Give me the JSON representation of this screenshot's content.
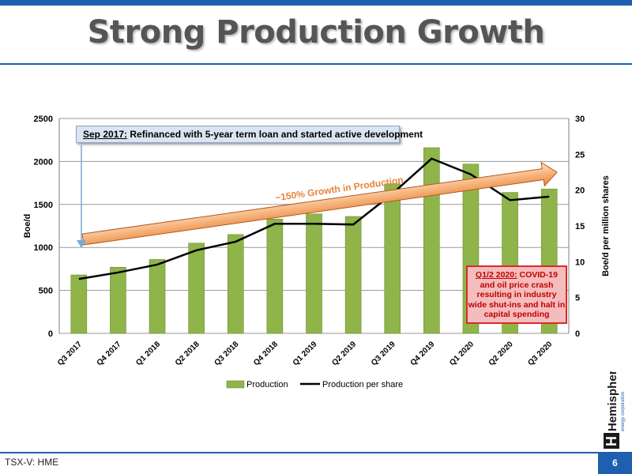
{
  "slide": {
    "title": "Strong Production Growth",
    "footer": "TSX-V: HME",
    "page_number": "6"
  },
  "logo": {
    "name": "Hemisphere",
    "subtitle": "energy corporation"
  },
  "annotations": {
    "box1_prefix": "Sep 2017:",
    "box1_text": " Refinanced with 5-year term loan and started active development",
    "growth_arrow": "~150% Growth in Production",
    "box2_prefix": "Q1/2 2020:",
    "box2_text": " COVID-19 and oil price crash resulting in industry wide shut-ins and halt in capital spending"
  },
  "colors": {
    "bar": "#8fb44a",
    "line": "#000000",
    "accent": "#1f5fb0",
    "arrow": "#f4a460"
  },
  "chart_data": {
    "type": "bar",
    "categories": [
      "Q3 2017",
      "Q4 2017",
      "Q1 2018",
      "Q2 2018",
      "Q3 2018",
      "Q4 2018",
      "Q1 2019",
      "Q2 2019",
      "Q3 2019",
      "Q4 2019",
      "Q1 2020",
      "Q2 2020",
      "Q3 2020"
    ],
    "series": [
      {
        "name": "Production",
        "type": "bar",
        "axis": "left",
        "values": [
          680,
          770,
          860,
          1050,
          1150,
          1330,
          1390,
          1360,
          1740,
          2160,
          1970,
          1640,
          1680
        ]
      },
      {
        "name": "Production per share",
        "type": "line",
        "axis": "right",
        "values": [
          7.6,
          8.5,
          9.6,
          11.6,
          12.8,
          15.3,
          15.3,
          15.2,
          19.5,
          24.4,
          22.2,
          18.6,
          19.1
        ]
      }
    ],
    "ylabel": "Boe/d",
    "y2label": "Boe/d per million shares",
    "ylim": [
      0,
      2500
    ],
    "y2lim": [
      0,
      30
    ],
    "yticks": [
      "0",
      "500",
      "1000",
      "1500",
      "2000",
      "2500"
    ],
    "y2ticks": [
      "0",
      "5",
      "10",
      "15",
      "20",
      "25",
      "30"
    ],
    "grid": true,
    "legend": "bottom"
  }
}
